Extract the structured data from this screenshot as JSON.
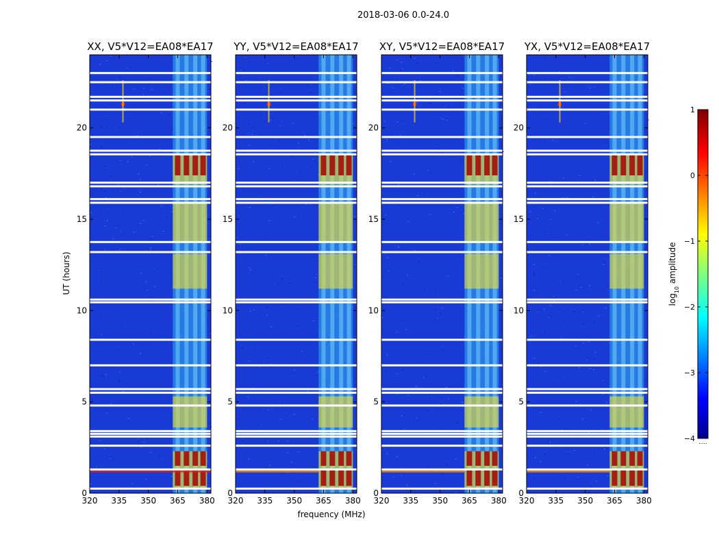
{
  "chart_data": {
    "type": "heatmap",
    "suptitle": "2018-03-06 0.0-24.0",
    "xlabel": "frequency (MHz)",
    "ylabel": "UT (hours)",
    "xlim": [
      320,
      382
    ],
    "ylim": [
      0,
      24
    ],
    "xticks": [
      320,
      335,
      350,
      365,
      380
    ],
    "yticks": [
      0,
      5,
      10,
      15,
      20
    ],
    "panels": [
      {
        "title": "XX, V5*V12=EA08*EA17"
      },
      {
        "title": "YY, V5*V12=EA08*EA17"
      },
      {
        "title": "XY, V5*V12=EA08*EA17"
      },
      {
        "title": "YX, V5*V12=EA08*EA17"
      }
    ],
    "colorbar": {
      "label": "log10 amplitude",
      "label_main": "log",
      "label_sub": "10",
      "label_rest": " amplitude",
      "vmin": -4,
      "vmax": 1,
      "ticks": [
        1,
        0,
        -1,
        -2,
        -3,
        -4
      ],
      "tick_labels": [
        "1",
        "0",
        "−1",
        "−2",
        "−3",
        "−4"
      ],
      "under_text": "....."
    },
    "colors": {
      "background": "#1a3ad6",
      "band_low": "#2fb0ee",
      "band_high": "#f0e030",
      "saturated": "#a30000",
      "flag": "#ffffff"
    },
    "flagged_hours": [
      0.25,
      1.3,
      2.6,
      3.1,
      3.25,
      3.4,
      4.8,
      5.5,
      5.7,
      7.0,
      8.4,
      10.45,
      10.6,
      13.2,
      13.75,
      15.9,
      16.1,
      16.8,
      17.0,
      18.55,
      18.75,
      19.5,
      21.0,
      21.5,
      21.7,
      22.5,
      23.0
    ]
  }
}
